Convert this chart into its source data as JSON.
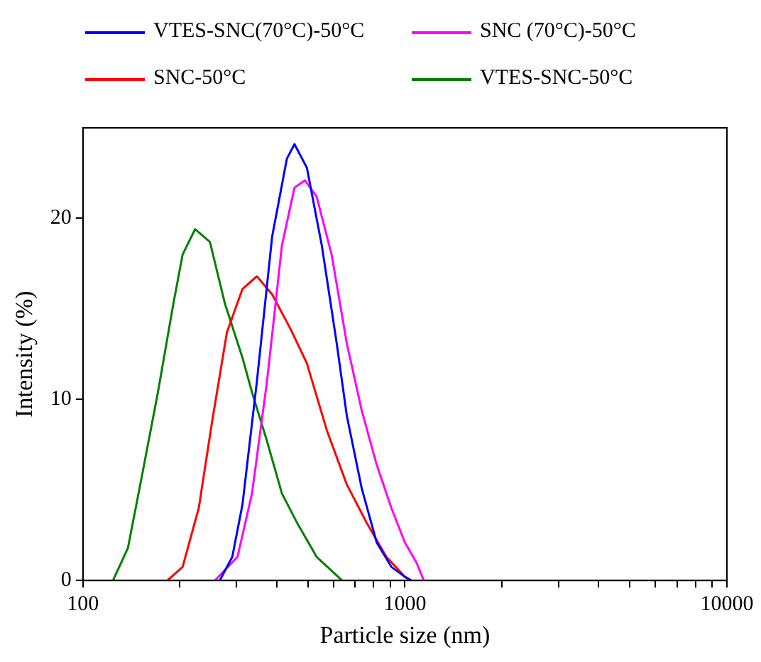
{
  "chart_data": {
    "type": "line",
    "xlabel": "Particle size (nm)",
    "ylabel": "Intensity (%)",
    "log": "x",
    "grid": false,
    "legend": "top",
    "marker": "none",
    "line_style": "solid",
    "xlim": [
      100,
      10000
    ],
    "ylim": [
      0,
      25
    ],
    "xticks": [
      100,
      {
        "value": 200,
        "label": null
      },
      {
        "value": 300,
        "label": null
      },
      {
        "value": 400,
        "label": null
      },
      {
        "value": 500,
        "label": null
      },
      {
        "value": 600,
        "label": null
      },
      {
        "value": 700,
        "label": null
      },
      {
        "value": 800,
        "label": null
      },
      {
        "value": 900,
        "label": null
      },
      1000,
      {
        "value": 2000,
        "label": null
      },
      {
        "value": 3000,
        "label": null
      },
      {
        "value": 4000,
        "label": null
      },
      {
        "value": 5000,
        "label": null
      },
      {
        "value": 6000,
        "label": null
      },
      {
        "value": 7000,
        "label": null
      },
      {
        "value": 8000,
        "label": null
      },
      {
        "value": 9000,
        "label": null
      },
      10000
    ],
    "yticks": [
      0,
      10,
      20
    ],
    "series": [
      {
        "name": "VTES-SNC(70°C)-50°C",
        "color": "#0000ff",
        "x": [
          266,
          291,
          313,
          347,
          387,
          430,
          454,
          496,
          552,
          614,
          660,
          734,
          817,
          908,
          1000,
          1047
        ],
        "values": [
          0,
          1.3,
          4.2,
          11.0,
          19.0,
          23.3,
          24.1,
          22.8,
          18.5,
          13.1,
          9.1,
          5.1,
          2.1,
          0.75,
          0.2,
          0
        ]
      },
      {
        "name": "SNC (70°C)-50°C",
        "color": "#ff00ff",
        "x": [
          257,
          302,
          335,
          373,
          415,
          454,
          489,
          532,
          592,
          660,
          734,
          817,
          908,
          1000,
          1085,
          1145
        ],
        "values": [
          0,
          1.3,
          4.8,
          11.0,
          18.5,
          21.7,
          22.1,
          21.2,
          18.0,
          13.1,
          9.4,
          6.4,
          4.0,
          2.1,
          1.0,
          0
        ]
      },
      {
        "name": "SNC-50°C",
        "color": "#ff0000",
        "x": [
          183,
          204,
          229,
          252,
          280,
          313,
          347,
          387,
          441,
          496,
          572,
          660,
          760,
          876,
          1000,
          1047
        ],
        "values": [
          0,
          0.75,
          4.0,
          8.8,
          13.7,
          16.1,
          16.8,
          15.8,
          13.9,
          12.0,
          8.3,
          5.3,
          3.2,
          1.3,
          0.2,
          0
        ]
      },
      {
        "name": "VTES-SNC-50°C",
        "color": "#008000",
        "x": [
          124,
          138,
          153,
          171,
          191,
          204,
          223,
          248,
          276,
          313,
          335,
          373,
          415,
          462,
          532,
          638
        ],
        "values": [
          0,
          1.8,
          5.9,
          10.4,
          15.3,
          18.0,
          19.4,
          18.7,
          15.3,
          12.3,
          10.4,
          7.7,
          4.8,
          3.2,
          1.3,
          0
        ]
      }
    ]
  }
}
